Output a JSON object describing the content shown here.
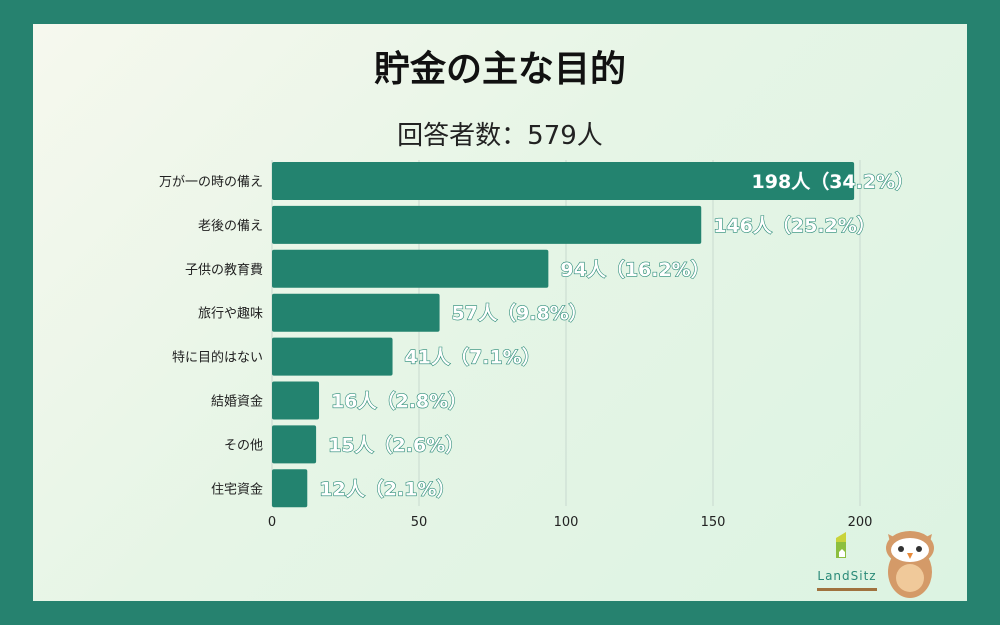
{
  "title": "貯金の主な目的",
  "subtitle": "回答者数：579人",
  "logo_text": "LandSitz",
  "colors": {
    "bar": "#23836f",
    "frame": "#26826f",
    "label_stroke": "#2a8a78"
  },
  "chart_data": {
    "type": "bar",
    "orientation": "horizontal",
    "categories": [
      "万が一の時の備え",
      "老後の備え",
      "子供の教育費",
      "旅行や趣味",
      "特に目的はない",
      "結婚資金",
      "その他",
      "住宅資金"
    ],
    "values": [
      198,
      146,
      94,
      57,
      41,
      16,
      15,
      12
    ],
    "data_labels": [
      "198人（34.2%）",
      "146人（25.2%）",
      "94人（16.2%）",
      "57人（9.8%）",
      "41人（7.1%）",
      "16人（2.8%）",
      "15人（2.6%）",
      "12人（2.1%）"
    ],
    "xlim": [
      0,
      200
    ],
    "xticks": [
      "0",
      "50",
      "100",
      "150",
      "200"
    ],
    "grid": "vertical",
    "legend": "none"
  }
}
